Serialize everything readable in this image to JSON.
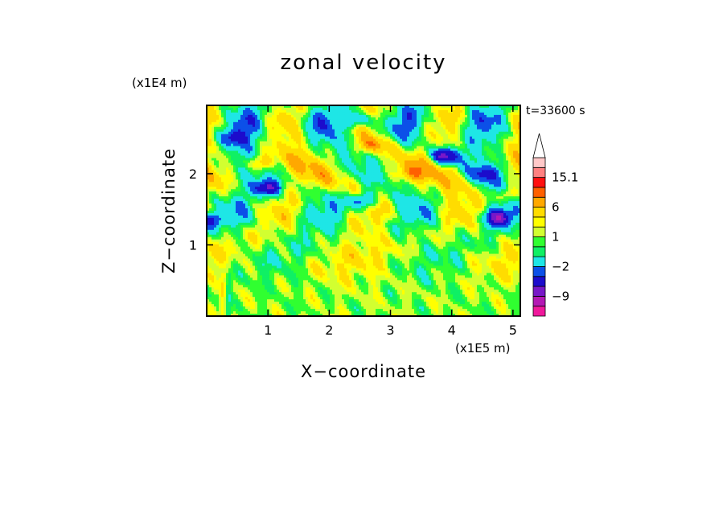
{
  "chart_data": {
    "type": "heatmap",
    "title": "zonal velocity",
    "xlabel": "X−coordinate",
    "ylabel": "Z−coordinate",
    "x_unit_label": "(x1E5 m)",
    "y_unit_label": "(x1E4 m)",
    "time_label": "t=33600 s",
    "xlim": [
      0,
      5.12
    ],
    "ylim": [
      0,
      2.96
    ],
    "x_ticks": [
      1,
      2,
      3,
      4,
      5
    ],
    "y_ticks": [
      1,
      2
    ],
    "x_tick_labels": [
      "1",
      "2",
      "3",
      "4",
      "5"
    ],
    "y_tick_labels": [
      "1",
      "2"
    ],
    "colorbar": {
      "levels": [
        "-15",
        "-12",
        "-9",
        "-6",
        "-4",
        "-2",
        "-1",
        "0",
        "1",
        "2",
        "4",
        "6",
        "8",
        "10",
        "15.1"
      ],
      "labels": [
        {
          "value": "15.1",
          "text": "15.1"
        },
        {
          "value": "6",
          "text": "6"
        },
        {
          "value": "1",
          "text": "1"
        },
        {
          "value": "-2",
          "text": "−2"
        },
        {
          "value": "-9",
          "text": "−9"
        }
      ],
      "colors": [
        "#f0189c",
        "#b418b4",
        "#7818c8",
        "#1c0ccc",
        "#0c50e8",
        "#1ee6e6",
        "#0ff064",
        "#30ff30",
        "#d2ff30",
        "#ffff00",
        "#ffdc00",
        "#ffa800",
        "#ff6000",
        "#ff1010",
        "#ff8080",
        "#ffc8c8",
        "#ffffff"
      ]
    },
    "pattern_bands": [
      {
        "z": 2.7,
        "base": -1.2,
        "amp": 4.2,
        "kx": 2.4,
        "phase": 0.5
      },
      {
        "z": 2.05,
        "base": 0.8,
        "amp": 4.0,
        "kx": 1.7,
        "phase": 2.2
      },
      {
        "z": 1.5,
        "base": -0.5,
        "amp": 3.5,
        "kx": 2.1,
        "phase": 4.0
      },
      {
        "z": 0.8,
        "base": 0.4,
        "amp": 2.0,
        "kx": 1.2,
        "phase": 1.1
      }
    ],
    "vortices": [
      {
        "x": 1.0,
        "z": 1.8,
        "value": -9
      },
      {
        "x": 2.55,
        "z": 1.62,
        "value": -7
      },
      {
        "x": 3.9,
        "z": 2.25,
        "value": -10
      },
      {
        "x": 4.75,
        "z": 1.38,
        "value": -8
      },
      {
        "x": 2.5,
        "z": 2.75,
        "value": -6
      },
      {
        "x": 0.45,
        "z": 2.5,
        "value": -5
      },
      {
        "x": 0.05,
        "z": 1.35,
        "value": -6
      },
      {
        "x": 4.55,
        "z": 2.0,
        "value": -5
      },
      {
        "x": 2.7,
        "z": 2.4,
        "value": 5
      },
      {
        "x": 0.85,
        "z": 2.15,
        "value": 5
      },
      {
        "x": 4.9,
        "z": 1.7,
        "value": 5
      },
      {
        "x": 3.3,
        "z": 2.0,
        "value": 4
      }
    ]
  }
}
